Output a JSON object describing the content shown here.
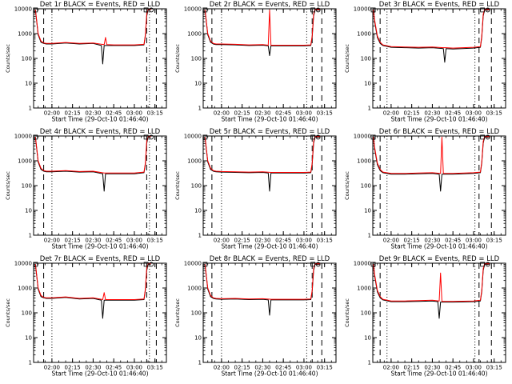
{
  "chart_data": {
    "type": "line",
    "layout": "3x3 grid",
    "yscale": "log",
    "ylim": [
      1,
      10000
    ],
    "xlim": [
      "01:46:40",
      "03:23:20"
    ],
    "x_ticks": [
      "02:00",
      "02:15",
      "02:30",
      "02:45",
      "03:00",
      "03:15"
    ],
    "y_ticks": [
      "1",
      "10",
      "100",
      "1000",
      "10000"
    ],
    "ylabel": "Counts/sec",
    "xlabel": "Start Time (29-Oct-10 01:46:40)",
    "colors": {
      "events": "#000000",
      "lld": "#ff0000",
      "markers": "#000000"
    },
    "panels": [
      {
        "title": "Det 1r BLACK = Events, RED = LLD",
        "markers": {
          "dotted": [
            "02:00",
            "03:11"
          ],
          "dashed": [
            "01:54",
            "03:09",
            "03:16"
          ]
        },
        "series": [
          {
            "name": "Events",
            "x": [
              "01:48",
              "01:50",
              "01:52",
              "01:54",
              "01:56",
              "02:00",
              "02:10",
              "02:20",
              "02:30",
              "02:36",
              "02:37",
              "02:38",
              "02:45",
              "03:00",
              "03:07",
              "03:08",
              "03:09",
              "03:10",
              "03:12"
            ],
            "values": [
              9000,
              900,
              450,
              400,
              380,
              380,
              420,
              380,
              400,
              330,
              60,
              330,
              330,
              330,
              350,
              800,
              5000,
              9000,
              9000
            ]
          },
          {
            "name": "LLD",
            "x": [
              "01:48",
              "01:50",
              "01:52",
              "01:54",
              "01:56",
              "02:00",
              "02:10",
              "02:20",
              "02:30",
              "02:38",
              "02:39",
              "02:40",
              "02:45",
              "03:00",
              "03:07",
              "03:08",
              "03:09",
              "03:10",
              "03:12"
            ],
            "values": [
              9000,
              1000,
              500,
              420,
              400,
              400,
              440,
              400,
              420,
              360,
              700,
              360,
              350,
              350,
              370,
              900,
              6000,
              9500,
              9500
            ]
          }
        ]
      },
      {
        "title": "Det 2r BLACK = Events, RED = LLD",
        "markers": {
          "dotted": [
            "02:00",
            "03:02"
          ],
          "dashed": [
            "01:53",
            "03:06",
            "03:13"
          ]
        },
        "series": [
          {
            "name": "Events",
            "x": [
              "01:48",
              "01:50",
              "01:52",
              "01:54",
              "01:56",
              "02:00",
              "02:10",
              "02:20",
              "02:30",
              "02:34",
              "02:35",
              "02:36",
              "02:45",
              "03:00",
              "03:05",
              "03:06",
              "03:07",
              "03:08",
              "03:12"
            ],
            "values": [
              9000,
              900,
              450,
              380,
              360,
              360,
              350,
              330,
              340,
              320,
              130,
              320,
              320,
              320,
              330,
              700,
              5000,
              9000,
              9000
            ]
          },
          {
            "name": "LLD",
            "x": [
              "01:48",
              "01:50",
              "01:52",
              "01:54",
              "01:56",
              "02:00",
              "02:10",
              "02:20",
              "02:30",
              "02:34",
              "02:35",
              "02:36",
              "02:45",
              "03:00",
              "03:05",
              "03:06",
              "03:07",
              "03:08",
              "03:12"
            ],
            "values": [
              9000,
              1000,
              500,
              400,
              380,
              380,
              370,
              350,
              360,
              340,
              9000,
              340,
              340,
              340,
              350,
              800,
              6000,
              9500,
              9500
            ]
          }
        ]
      },
      {
        "title": "Det 3r BLACK = Events, RED = LLD",
        "markers": {
          "dotted": [
            "01:57",
            "03:01"
          ],
          "dashed": [
            "01:52",
            "03:04",
            "03:13"
          ]
        },
        "series": [
          {
            "name": "Events",
            "x": [
              "01:47",
              "01:48",
              "01:50",
              "01:52",
              "01:54",
              "02:00",
              "02:10",
              "02:20",
              "02:30",
              "02:38",
              "02:39",
              "02:40",
              "02:45",
              "03:00",
              "03:05",
              "03:06",
              "03:07",
              "03:08",
              "03:12"
            ],
            "values": [
              9000,
              3000,
              700,
              400,
              330,
              280,
              270,
              260,
              270,
              250,
              70,
              250,
              240,
              260,
              280,
              700,
              5000,
              9000,
              9000
            ]
          },
          {
            "name": "LLD",
            "x": [
              "01:47",
              "01:48",
              "01:50",
              "01:52",
              "01:54",
              "02:00",
              "02:10",
              "02:20",
              "02:30",
              "02:38",
              "02:40",
              "02:45",
              "03:00",
              "03:05",
              "03:06",
              "03:07",
              "03:08",
              "03:12"
            ],
            "values": [
              9000,
              3500,
              800,
              450,
              350,
              300,
              290,
              280,
              290,
              270,
              270,
              260,
              280,
              300,
              800,
              6000,
              9500,
              9500
            ]
          }
        ]
      },
      {
        "title": "Det 4r BLACK = Events, RED = LLD",
        "markers": {
          "dotted": [
            "02:00",
            "03:11"
          ],
          "dashed": [
            "01:54",
            "03:09",
            "03:16"
          ]
        },
        "series": [
          {
            "name": "Events",
            "x": [
              "01:48",
              "01:50",
              "01:52",
              "01:54",
              "01:56",
              "02:00",
              "02:10",
              "02:20",
              "02:30",
              "02:37",
              "02:38",
              "02:39",
              "02:45",
              "03:00",
              "03:07",
              "03:08",
              "03:09",
              "03:10",
              "03:12"
            ],
            "values": [
              9000,
              900,
              450,
              380,
              360,
              360,
              380,
              350,
              360,
              300,
              60,
              300,
              300,
              300,
              330,
              700,
              5000,
              9000,
              9000
            ]
          },
          {
            "name": "LLD",
            "x": [
              "01:48",
              "01:50",
              "01:52",
              "01:54",
              "01:56",
              "02:00",
              "02:10",
              "02:20",
              "02:30",
              "02:38",
              "02:45",
              "03:00",
              "03:07",
              "03:08",
              "03:09",
              "03:10",
              "03:12"
            ],
            "values": [
              9000,
              1000,
              500,
              400,
              380,
              380,
              400,
              370,
              380,
              320,
              320,
              320,
              350,
              800,
              6000,
              9500,
              9500
            ]
          }
        ]
      },
      {
        "title": "Det 5r BLACK = Events, RED = LLD",
        "markers": {
          "dotted": [
            "02:00",
            "03:02"
          ],
          "dashed": [
            "01:53",
            "03:06",
            "03:13"
          ]
        },
        "series": [
          {
            "name": "Events",
            "x": [
              "01:48",
              "01:50",
              "01:52",
              "01:54",
              "01:56",
              "02:00",
              "02:10",
              "02:20",
              "02:30",
              "02:34",
              "02:35",
              "02:36",
              "02:45",
              "03:00",
              "03:05",
              "03:06",
              "03:07",
              "03:08",
              "03:12"
            ],
            "values": [
              9000,
              900,
              450,
              380,
              360,
              350,
              340,
              330,
              340,
              320,
              60,
              320,
              320,
              320,
              330,
              700,
              5000,
              9000,
              9000
            ]
          },
          {
            "name": "LLD",
            "x": [
              "01:48",
              "01:50",
              "01:52",
              "01:54",
              "01:56",
              "02:00",
              "02:10",
              "02:20",
              "02:30",
              "02:36",
              "02:45",
              "03:00",
              "03:05",
              "03:06",
              "03:07",
              "03:08",
              "03:12"
            ],
            "values": [
              9000,
              1000,
              500,
              400,
              380,
              370,
              360,
              350,
              360,
              340,
              340,
              340,
              350,
              800,
              6000,
              9500,
              9500
            ]
          }
        ]
      },
      {
        "title": "Det 6r BLACK = Events, RED = LLD",
        "markers": {
          "dotted": [
            "01:57",
            "03:01"
          ],
          "dashed": [
            "01:52",
            "03:04",
            "03:13"
          ]
        },
        "series": [
          {
            "name": "Events",
            "x": [
              "01:47",
              "01:48",
              "01:50",
              "01:52",
              "01:54",
              "02:00",
              "02:10",
              "02:20",
              "02:30",
              "02:35",
              "02:36",
              "02:37",
              "02:45",
              "03:00",
              "03:05",
              "03:06",
              "03:07",
              "03:08",
              "03:12"
            ],
            "values": [
              9000,
              3000,
              700,
              400,
              330,
              290,
              290,
              300,
              310,
              290,
              60,
              290,
              290,
              310,
              330,
              800,
              5000,
              9000,
              9000
            ]
          },
          {
            "name": "LLD",
            "x": [
              "01:47",
              "01:48",
              "01:50",
              "01:52",
              "01:54",
              "02:00",
              "02:10",
              "02:20",
              "02:30",
              "02:36",
              "02:37",
              "02:38",
              "02:45",
              "03:00",
              "03:05",
              "03:06",
              "03:07",
              "03:08",
              "03:12"
            ],
            "values": [
              9000,
              3500,
              800,
              450,
              350,
              310,
              310,
              320,
              330,
              310,
              9000,
              310,
              310,
              330,
              350,
              900,
              6000,
              9500,
              9500
            ]
          }
        ]
      },
      {
        "title": "Det 7r BLACK = Events, RED = LLD",
        "markers": {
          "dotted": [
            "02:00",
            "03:11"
          ],
          "dashed": [
            "01:54",
            "03:09",
            "03:16"
          ]
        },
        "series": [
          {
            "name": "Events",
            "x": [
              "01:48",
              "01:50",
              "01:52",
              "01:54",
              "01:56",
              "02:00",
              "02:10",
              "02:20",
              "02:30",
              "02:36",
              "02:37",
              "02:38",
              "02:45",
              "03:00",
              "03:07",
              "03:08",
              "03:09",
              "03:10",
              "03:12"
            ],
            "values": [
              9000,
              900,
              450,
              400,
              380,
              380,
              420,
              360,
              380,
              320,
              60,
              320,
              320,
              320,
              340,
              800,
              5000,
              9000,
              9000
            ]
          },
          {
            "name": "LLD",
            "x": [
              "01:48",
              "01:50",
              "01:52",
              "01:54",
              "01:56",
              "02:00",
              "02:10",
              "02:20",
              "02:30",
              "02:37",
              "02:38",
              "02:39",
              "02:45",
              "03:00",
              "03:07",
              "03:08",
              "03:09",
              "03:10",
              "03:12"
            ],
            "values": [
              9000,
              1000,
              500,
              420,
              400,
              400,
              440,
              380,
              400,
              340,
              650,
              340,
              340,
              340,
              360,
              900,
              6000,
              9500,
              9500
            ]
          }
        ]
      },
      {
        "title": "Det 8r BLACK = Events, RED = LLD",
        "markers": {
          "dotted": [
            "02:00",
            "03:02"
          ],
          "dashed": [
            "01:53",
            "03:06",
            "03:13"
          ]
        },
        "series": [
          {
            "name": "Events",
            "x": [
              "01:48",
              "01:50",
              "01:52",
              "01:54",
              "01:56",
              "02:00",
              "02:10",
              "02:20",
              "02:30",
              "02:34",
              "02:35",
              "02:36",
              "02:45",
              "03:00",
              "03:05",
              "03:06",
              "03:07",
              "03:08",
              "03:12"
            ],
            "values": [
              9000,
              900,
              450,
              380,
              360,
              350,
              360,
              340,
              350,
              330,
              80,
              330,
              330,
              330,
              340,
              700,
              5000,
              9000,
              9000
            ]
          },
          {
            "name": "LLD",
            "x": [
              "01:48",
              "01:50",
              "01:52",
              "01:54",
              "01:56",
              "02:00",
              "02:10",
              "02:20",
              "02:30",
              "02:36",
              "02:45",
              "03:00",
              "03:05",
              "03:06",
              "03:07",
              "03:08",
              "03:12"
            ],
            "values": [
              9000,
              1000,
              500,
              400,
              380,
              370,
              380,
              360,
              370,
              350,
              350,
              350,
              360,
              800,
              6000,
              9500,
              9500
            ]
          }
        ]
      },
      {
        "title": "Det 9r BLACK = Events, RED = LLD",
        "markers": {
          "dotted": [
            "01:57",
            "03:01"
          ],
          "dashed": [
            "01:52",
            "03:04",
            "03:13"
          ]
        },
        "series": [
          {
            "name": "Events",
            "x": [
              "01:47",
              "01:48",
              "01:50",
              "01:52",
              "01:54",
              "02:00",
              "02:10",
              "02:20",
              "02:30",
              "02:34",
              "02:35",
              "02:36",
              "02:45",
              "03:00",
              "03:05",
              "03:06",
              "03:07",
              "03:08",
              "03:12"
            ],
            "values": [
              9000,
              3000,
              700,
              400,
              330,
              280,
              280,
              290,
              300,
              280,
              60,
              270,
              270,
              280,
              300,
              700,
              5000,
              9000,
              9000
            ]
          },
          {
            "name": "LLD",
            "x": [
              "01:47",
              "01:48",
              "01:50",
              "01:52",
              "01:54",
              "02:00",
              "02:10",
              "02:20",
              "02:30",
              "02:35",
              "02:36",
              "02:37",
              "02:45",
              "03:00",
              "03:05",
              "03:06",
              "03:07",
              "03:08",
              "03:12"
            ],
            "values": [
              9000,
              3500,
              800,
              450,
              350,
              300,
              300,
              310,
              320,
              300,
              4000,
              290,
              290,
              300,
              320,
              800,
              6000,
              9500,
              9500
            ]
          }
        ]
      }
    ]
  }
}
